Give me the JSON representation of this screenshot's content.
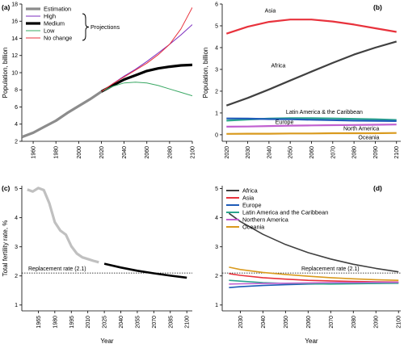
{
  "chart_data": [
    {
      "panel": "(a)",
      "type": "line",
      "ylabel": "Population, billion",
      "xticks": [
        1960,
        1980,
        2000,
        2020,
        2040,
        2060,
        2080,
        2100
      ],
      "yticks": [
        2,
        4,
        6,
        8,
        10,
        12,
        14,
        16,
        18
      ],
      "xlim": [
        1950,
        2100
      ],
      "ylim": [
        2,
        18
      ],
      "legend": {
        "placement": "top-left",
        "entries": [
          "Estimation",
          "High",
          "Medium",
          "Low",
          "No change"
        ],
        "bracket_label": "Projections"
      },
      "series": [
        {
          "name": "Estimation",
          "color": "#8c8c8c",
          "width": 3.2,
          "x": [
            1950,
            1960,
            1970,
            1980,
            1990,
            2000,
            2010,
            2020
          ],
          "y": [
            2.5,
            3.0,
            3.7,
            4.4,
            5.3,
            6.1,
            6.9,
            7.8
          ]
        },
        {
          "name": "High",
          "color": "#7b2cbf",
          "width": 1,
          "x": [
            2020,
            2030,
            2040,
            2050,
            2060,
            2070,
            2080,
            2090,
            2100
          ],
          "y": [
            7.8,
            8.7,
            9.6,
            10.4,
            11.3,
            12.3,
            13.3,
            14.4,
            15.6
          ]
        },
        {
          "name": "Medium",
          "color": "#000000",
          "width": 3.2,
          "x": [
            2020,
            2030,
            2040,
            2050,
            2060,
            2070,
            2080,
            2090,
            2100
          ],
          "y": [
            7.8,
            8.5,
            9.2,
            9.7,
            10.2,
            10.5,
            10.7,
            10.85,
            10.9
          ]
        },
        {
          "name": "Low",
          "color": "#3aa864",
          "width": 1,
          "x": [
            2020,
            2030,
            2040,
            2050,
            2060,
            2070,
            2080,
            2090,
            2100
          ],
          "y": [
            7.8,
            8.4,
            8.8,
            8.9,
            8.8,
            8.5,
            8.1,
            7.7,
            7.3
          ]
        },
        {
          "name": "No change",
          "color": "#e8323c",
          "width": 1,
          "x": [
            2020,
            2030,
            2040,
            2050,
            2060,
            2070,
            2080,
            2090,
            2100
          ],
          "y": [
            7.8,
            8.7,
            9.5,
            10.3,
            11.1,
            12.1,
            13.3,
            15.1,
            17.6
          ]
        }
      ]
    },
    {
      "panel": "(b)",
      "type": "line",
      "ylabel": "Population, billion",
      "xticks": [
        2020,
        2030,
        2040,
        2050,
        2060,
        2070,
        2080,
        2090,
        2100
      ],
      "yticks": [
        0,
        1,
        2,
        3,
        4,
        5,
        6
      ],
      "xlim": [
        2018,
        2102
      ],
      "ylim": [
        -0.3,
        6
      ],
      "series": [
        {
          "name": "Asia",
          "color": "#e8323c",
          "width": 2.2,
          "x": [
            2020,
            2030,
            2040,
            2050,
            2060,
            2070,
            2080,
            2090,
            2100
          ],
          "y": [
            4.64,
            4.96,
            5.18,
            5.29,
            5.29,
            5.2,
            5.06,
            4.89,
            4.72
          ]
        },
        {
          "name": "Africa",
          "color": "#404040",
          "width": 2.2,
          "x": [
            2020,
            2030,
            2040,
            2050,
            2060,
            2070,
            2080,
            2090,
            2100
          ],
          "y": [
            1.34,
            1.69,
            2.08,
            2.49,
            2.9,
            3.3,
            3.68,
            4.0,
            4.28
          ]
        },
        {
          "name": "Latin America & the Caribbean",
          "color": "#2ca58d",
          "width": 2.2,
          "x": [
            2020,
            2030,
            2040,
            2050,
            2060,
            2070,
            2080,
            2090,
            2100
          ],
          "y": [
            0.65,
            0.7,
            0.74,
            0.76,
            0.76,
            0.75,
            0.73,
            0.71,
            0.68
          ]
        },
        {
          "name": "Europe",
          "color": "#1e5bb8",
          "width": 2.2,
          "x": [
            2020,
            2030,
            2040,
            2050,
            2060,
            2070,
            2080,
            2090,
            2100
          ],
          "y": [
            0.75,
            0.74,
            0.72,
            0.71,
            0.69,
            0.67,
            0.65,
            0.64,
            0.63
          ]
        },
        {
          "name": "North America",
          "color": "#c060d0",
          "width": 2.2,
          "x": [
            2020,
            2030,
            2040,
            2050,
            2060,
            2070,
            2080,
            2090,
            2100
          ],
          "y": [
            0.37,
            0.38,
            0.4,
            0.42,
            0.43,
            0.44,
            0.45,
            0.46,
            0.47
          ]
        },
        {
          "name": "Oceania",
          "color": "#d99a1e",
          "width": 2.2,
          "x": [
            2020,
            2030,
            2040,
            2050,
            2060,
            2070,
            2080,
            2090,
            2100
          ],
          "y": [
            0.04,
            0.05,
            0.05,
            0.06,
            0.06,
            0.07,
            0.07,
            0.07,
            0.08
          ]
        }
      ]
    },
    {
      "panel": "(c)",
      "type": "line",
      "xlabel": "Year",
      "ylabel": "Total fertility rate, %",
      "xticks": [
        1965,
        1980,
        1995,
        2010,
        2025,
        2040,
        2055,
        2070,
        2085,
        2100
      ],
      "yticks": [
        1,
        2,
        3,
        4,
        5
      ],
      "xlim": [
        1950,
        2105
      ],
      "ylim": [
        0.8,
        5.1
      ],
      "reference": {
        "label": "Replacement rate (2.1)",
        "y": 2.1
      },
      "series": [
        {
          "name": "Estimation",
          "color": "#c0c0c0",
          "width": 3.2,
          "x": [
            1955,
            1960,
            1965,
            1970,
            1975,
            1980,
            1985,
            1990,
            1995,
            2000,
            2005,
            2010,
            2015,
            2020
          ],
          "y": [
            4.97,
            4.9,
            5.02,
            4.95,
            4.5,
            3.85,
            3.56,
            3.42,
            3.02,
            2.77,
            2.64,
            2.58,
            2.52,
            2.47
          ]
        },
        {
          "name": "Projection",
          "color": "#000000",
          "width": 2.6,
          "x": [
            2025,
            2040,
            2055,
            2070,
            2085,
            2100
          ],
          "y": [
            2.42,
            2.29,
            2.18,
            2.09,
            2.01,
            1.94
          ]
        }
      ]
    },
    {
      "panel": "(d)",
      "type": "line",
      "xlabel": "Year",
      "xticks": [
        2030,
        2040,
        2050,
        2060,
        2070,
        2080,
        2090,
        2100
      ],
      "yticks": [
        1,
        2,
        3,
        4,
        5
      ],
      "xlim": [
        2022,
        2101
      ],
      "ylim": [
        0.8,
        5.1
      ],
      "reference": {
        "label": "Replacement rate (2.1)",
        "y": 2.1
      },
      "legend": {
        "placement": "top-left",
        "entries": [
          "Africa",
          "Asia",
          "Europe",
          "Latin America and the Caribbean",
          "Northern America",
          "Oceania"
        ]
      },
      "series": [
        {
          "name": "Africa",
          "color": "#404040",
          "width": 1.6,
          "x": [
            2025,
            2030,
            2040,
            2050,
            2060,
            2070,
            2080,
            2090,
            2100
          ],
          "y": [
            4.15,
            3.87,
            3.43,
            3.08,
            2.8,
            2.58,
            2.4,
            2.26,
            2.14
          ]
        },
        {
          "name": "Asia",
          "color": "#e8323c",
          "width": 1.6,
          "x": [
            2025,
            2030,
            2040,
            2050,
            2060,
            2070,
            2080,
            2090,
            2100
          ],
          "y": [
            2.08,
            2.02,
            1.94,
            1.89,
            1.85,
            1.83,
            1.81,
            1.8,
            1.79
          ]
        },
        {
          "name": "Europe",
          "color": "#1e5bb8",
          "width": 1.6,
          "x": [
            2025,
            2030,
            2040,
            2050,
            2060,
            2070,
            2080,
            2090,
            2100
          ],
          "y": [
            1.6,
            1.63,
            1.67,
            1.7,
            1.72,
            1.73,
            1.74,
            1.75,
            1.76
          ]
        },
        {
          "name": "Latin America and the Caribbean",
          "color": "#2ca58d",
          "width": 1.6,
          "x": [
            2025,
            2030,
            2040,
            2050,
            2060,
            2070,
            2080,
            2090,
            2100
          ],
          "y": [
            1.85,
            1.82,
            1.77,
            1.74,
            1.73,
            1.72,
            1.73,
            1.74,
            1.75
          ]
        },
        {
          "name": "Northern America",
          "color": "#c060d0",
          "width": 1.6,
          "x": [
            2025,
            2030,
            2040,
            2050,
            2060,
            2070,
            2080,
            2090,
            2100
          ],
          "y": [
            1.72,
            1.73,
            1.74,
            1.75,
            1.76,
            1.77,
            1.77,
            1.78,
            1.78
          ]
        },
        {
          "name": "Oceania",
          "color": "#d99a1e",
          "width": 1.6,
          "x": [
            2025,
            2030,
            2040,
            2050,
            2060,
            2070,
            2080,
            2090,
            2100
          ],
          "y": [
            2.3,
            2.22,
            2.12,
            2.05,
            1.99,
            1.94,
            1.9,
            1.87,
            1.85
          ]
        }
      ]
    }
  ]
}
